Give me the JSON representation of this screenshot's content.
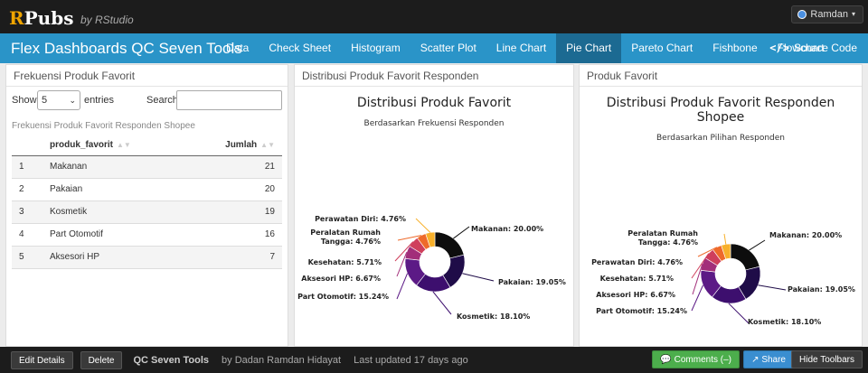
{
  "topbar": {
    "logo_r": "R",
    "logo_rest": "Pubs",
    "byline": "by RStudio",
    "user": "Ramdan",
    "user_caret": "▾"
  },
  "navbar": {
    "brand": "Flex Dashboards QC Seven Tools",
    "tabs": [
      {
        "label": "Data"
      },
      {
        "label": "Check Sheet"
      },
      {
        "label": "Histogram"
      },
      {
        "label": "Scatter Plot"
      },
      {
        "label": "Line Chart"
      },
      {
        "label": "Pie Chart"
      },
      {
        "label": "Pareto Chart"
      },
      {
        "label": "Fishbone"
      },
      {
        "label": "Flowchart"
      }
    ],
    "active_tab": "Pie Chart",
    "source_icon": "</>",
    "source_label": "Source Code"
  },
  "panel_table": {
    "title": "Frekuensi Produk Favorit",
    "show_label": "Show",
    "entries_value": "5",
    "select_chevron": "⌄",
    "entries_label": "entries",
    "search_label": "Search:",
    "caption": "Frekuensi Produk Favorit Responden Shopee",
    "headers": [
      "",
      "produk_favorit",
      "Jumlah"
    ],
    "sort_glyph": "▲▼",
    "rows": [
      {
        "idx": "1",
        "name": "Makanan",
        "count": "21"
      },
      {
        "idx": "2",
        "name": "Pakaian",
        "count": "20"
      },
      {
        "idx": "3",
        "name": "Kosmetik",
        "count": "19"
      },
      {
        "idx": "4",
        "name": "Part Otomotif",
        "count": "16"
      },
      {
        "idx": "5",
        "name": "Aksesori HP",
        "count": "7"
      }
    ]
  },
  "chart_data": [
    {
      "panel_title": "Distribusi Produk Favorit Responden",
      "type": "pie",
      "title": "Distribusi Produk Favorit",
      "subtitle": "Berdasarkan Frekuensi Responden",
      "categories": [
        "Makanan",
        "Pakaian",
        "Kosmetik",
        "Part Otomotif",
        "Aksesori HP",
        "Kesehatan",
        "Peralatan Rumah Tangga",
        "Perawatan Diri"
      ],
      "values": [
        20.0,
        19.05,
        18.1,
        15.24,
        6.67,
        5.71,
        4.76,
        4.76
      ],
      "labels": [
        "Makanan: 20.00%",
        "Pakaian: 19.05%",
        "Kosmetik: 18.10%",
        "Part Otomotif: 15.24%",
        "Aksesori HP: 6.67%",
        "Kesehatan: 5.71%",
        "Peralatan Rumah|Tangga: 4.76%",
        "Perawatan Diri: 4.76%"
      ],
      "colors": [
        "#0d0d0d",
        "#1f0c48",
        "#3d0f6e",
        "#5c1a86",
        "#a22e7a",
        "#cf3f5c",
        "#ee6a2b",
        "#f7b02b"
      ]
    },
    {
      "panel_title": "Produk Favorit",
      "type": "pie",
      "title": "Distribusi Produk Favorit Responden|Shopee",
      "subtitle": "Berdasarkan Pilihan Responden",
      "categories": [
        "Makanan",
        "Pakaian",
        "Kosmetik",
        "Part Otomotif",
        "Aksesori HP",
        "Kesehatan",
        "Perawatan Diri",
        "Peralatan Rumah Tangga"
      ],
      "values": [
        20.0,
        19.05,
        18.1,
        15.24,
        6.67,
        5.71,
        4.76,
        4.76
      ],
      "labels": [
        "Makanan: 20.00%",
        "Pakaian: 19.05%",
        "Kosmetik: 18.10%",
        "Part Otomotif: 15.24%",
        "Aksesori HP: 6.67%",
        "Kesehatan: 5.71%",
        "Perawatan Diri: 4.76%",
        "Peralatan Rumah|Tangga: 4.76%"
      ],
      "colors": [
        "#0d0d0d",
        "#1f0c48",
        "#3d0f6e",
        "#5c1a86",
        "#a22e7a",
        "#cf3f5c",
        "#ee6a2b",
        "#f7b02b"
      ]
    }
  ],
  "bottombar": {
    "edit": "Edit Details",
    "delete": "Delete",
    "doc_title": "QC Seven Tools",
    "author": "by Dadan Ramdan Hidayat",
    "updated": "Last updated 17 days ago",
    "comments": "Comments (–)",
    "share": "Share",
    "hide": "Hide Toolbars",
    "comments_icon": "💬",
    "share_icon": "↗"
  }
}
